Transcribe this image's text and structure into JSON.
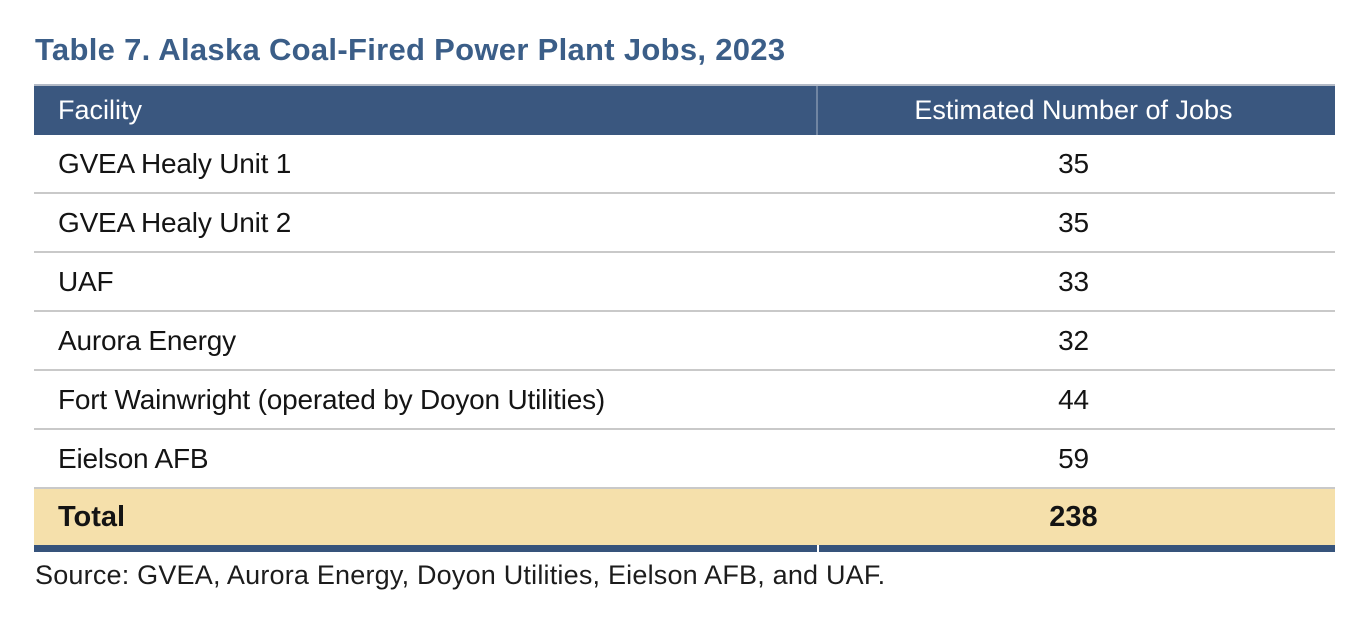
{
  "title": "Table 7. Alaska Coal-Fired Power Plant Jobs, 2023",
  "table": {
    "columns": [
      "Facility",
      "Estimated Number of Jobs"
    ],
    "rows": [
      {
        "facility": "GVEA Healy Unit 1",
        "jobs": "35"
      },
      {
        "facility": "GVEA Healy Unit 2",
        "jobs": "35"
      },
      {
        "facility": "UAF",
        "jobs": "33"
      },
      {
        "facility": "Aurora Energy",
        "jobs": "32"
      },
      {
        "facility": "Fort Wainwright (operated by Doyon Utilities)",
        "jobs": "44"
      },
      {
        "facility": "Eielson AFB",
        "jobs": "59"
      }
    ],
    "total_row": {
      "label": "Total",
      "jobs": "238"
    }
  },
  "source": "Source: GVEA, Aurora Energy, Doyon Utilities, Eielson AFB, and UAF.",
  "colors": {
    "header_bg": "#3a577f",
    "header_text": "#ffffff",
    "title_text": "#3b5e88",
    "total_row_bg": "#f5e0ab",
    "bottom_border": "#36537b",
    "row_divider": "#c9c9c9",
    "body_text": "#141414"
  },
  "chart_data": {
    "type": "table",
    "title": "Table 7. Alaska Coal-Fired Power Plant Jobs, 2023",
    "columns": [
      "Facility",
      "Estimated Number of Jobs"
    ],
    "rows": [
      [
        "GVEA Healy Unit 1",
        35
      ],
      [
        "GVEA Healy Unit 2",
        35
      ],
      [
        "UAF",
        33
      ],
      [
        "Aurora Energy",
        32
      ],
      [
        "Fort Wainwright (operated by Doyon Utilities)",
        44
      ],
      [
        "Eielson AFB",
        59
      ]
    ],
    "total": [
      "Total",
      238
    ],
    "source_note": "Source: GVEA, Aurora Energy, Doyon Utilities, Eielson AFB, and UAF.",
    "layout": {
      "header_style": "navy band, white text",
      "total_style": "tan highlight band, bold",
      "value_alignment": "center"
    }
  }
}
